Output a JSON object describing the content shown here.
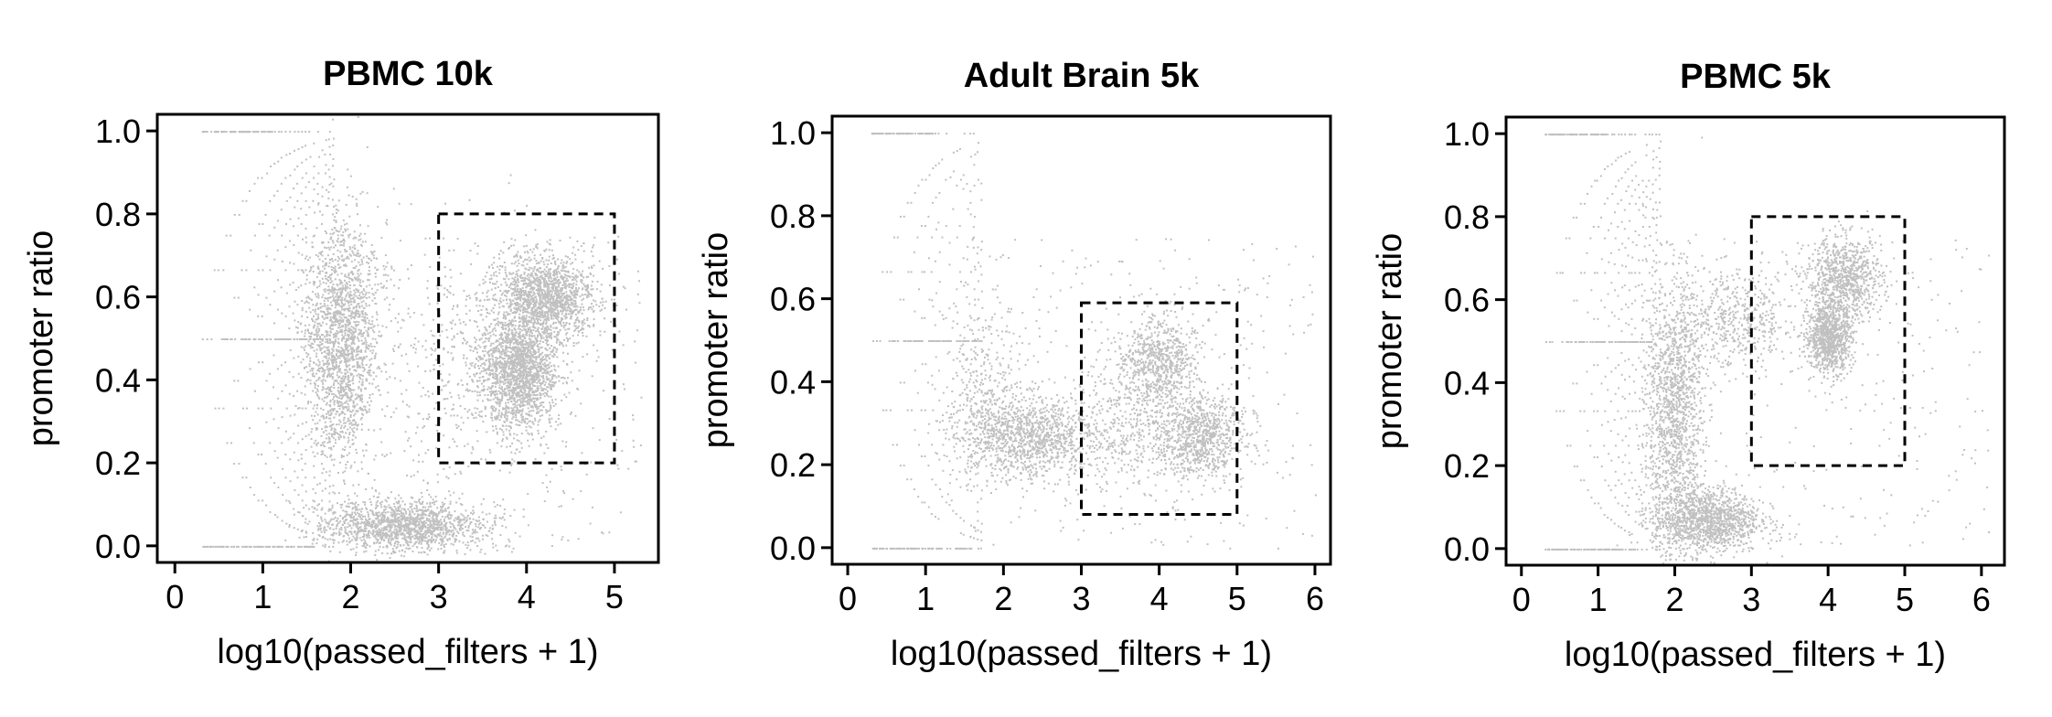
{
  "chart_data": [
    {
      "type": "scatter",
      "title": "PBMC 10k",
      "xlabel": "log10(passed_filters + 1)",
      "ylabel": "promoter ratio",
      "xlim": [
        -0.2,
        5.5
      ],
      "ylim": [
        -0.04,
        1.04
      ],
      "xticks": [
        "0",
        "1",
        "2",
        "3",
        "4",
        "5"
      ],
      "yticks": [
        "0.0",
        "0.2",
        "0.4",
        "0.6",
        "0.8",
        "1.0"
      ],
      "point_color": "#c0c0c0",
      "gate": {
        "x": [
          3,
          5
        ],
        "y": [
          0.2,
          0.8
        ]
      },
      "clusters": [
        {
          "cx": 3.9,
          "cy": 0.42,
          "sx": 0.22,
          "sy": 0.07,
          "n": 1800
        },
        {
          "cx": 4.2,
          "cy": 0.6,
          "sx": 0.28,
          "sy": 0.05,
          "n": 1500
        },
        {
          "cx": 1.9,
          "cy": 0.5,
          "sx": 0.2,
          "sy": 0.14,
          "n": 1800
        },
        {
          "cx": 2.6,
          "cy": 0.05,
          "sx": 0.45,
          "sy": 0.03,
          "n": 1500
        },
        {
          "cx": 3.3,
          "cy": 0.45,
          "sx": 0.5,
          "sy": 0.15,
          "n": 400
        }
      ],
      "fan_end": 1.8,
      "fan_top": 1.5
    },
    {
      "type": "scatter",
      "title": "Adult Brain 5k",
      "xlabel": "log10(passed_filters + 1)",
      "ylabel": "promoter ratio",
      "xlim": [
        -0.2,
        6.2
      ],
      "ylim": [
        -0.04,
        1.04
      ],
      "xticks": [
        "0",
        "1",
        "2",
        "3",
        "4",
        "5",
        "6"
      ],
      "yticks": [
        "0.0",
        "0.2",
        "0.4",
        "0.6",
        "0.8",
        "1.0"
      ],
      "point_color": "#c0c0c0",
      "gate": {
        "x": [
          3,
          5
        ],
        "y": [
          0.08,
          0.59
        ]
      },
      "clusters": [
        {
          "cx": 2.3,
          "cy": 0.27,
          "sx": 0.45,
          "sy": 0.05,
          "n": 1200
        },
        {
          "cx": 4.0,
          "cy": 0.45,
          "sx": 0.25,
          "sy": 0.05,
          "n": 700
        },
        {
          "cx": 4.5,
          "cy": 0.27,
          "sx": 0.3,
          "sy": 0.05,
          "n": 900
        },
        {
          "cx": 3.6,
          "cy": 0.32,
          "sx": 0.4,
          "sy": 0.09,
          "n": 400
        },
        {
          "cx": 1.8,
          "cy": 0.4,
          "sx": 0.25,
          "sy": 0.1,
          "n": 250
        }
      ],
      "fan_end": 1.7,
      "fan_top": 1.2
    },
    {
      "type": "scatter",
      "title": "PBMC 5k",
      "xlabel": "log10(passed_filters + 1)",
      "ylabel": "promoter ratio",
      "xlim": [
        -0.2,
        6.3
      ],
      "ylim": [
        -0.04,
        1.04
      ],
      "xticks": [
        "0",
        "1",
        "2",
        "3",
        "4",
        "5",
        "6"
      ],
      "yticks": [
        "0.0",
        "0.2",
        "0.4",
        "0.6",
        "0.8",
        "1.0"
      ],
      "point_color": "#c0c0c0",
      "gate": {
        "x": [
          3,
          5
        ],
        "y": [
          0.2,
          0.8
        ]
      },
      "clusters": [
        {
          "cx": 4.0,
          "cy": 0.51,
          "sx": 0.15,
          "sy": 0.04,
          "n": 900
        },
        {
          "cx": 4.2,
          "cy": 0.65,
          "sx": 0.25,
          "sy": 0.05,
          "n": 900
        },
        {
          "cx": 2.0,
          "cy": 0.35,
          "sx": 0.18,
          "sy": 0.15,
          "n": 1300
        },
        {
          "cx": 2.4,
          "cy": 0.07,
          "sx": 0.35,
          "sy": 0.04,
          "n": 1300
        },
        {
          "cx": 2.8,
          "cy": 0.55,
          "sx": 0.4,
          "sy": 0.06,
          "n": 500
        }
      ],
      "fan_end": 1.8,
      "fan_top": 1.4
    }
  ]
}
